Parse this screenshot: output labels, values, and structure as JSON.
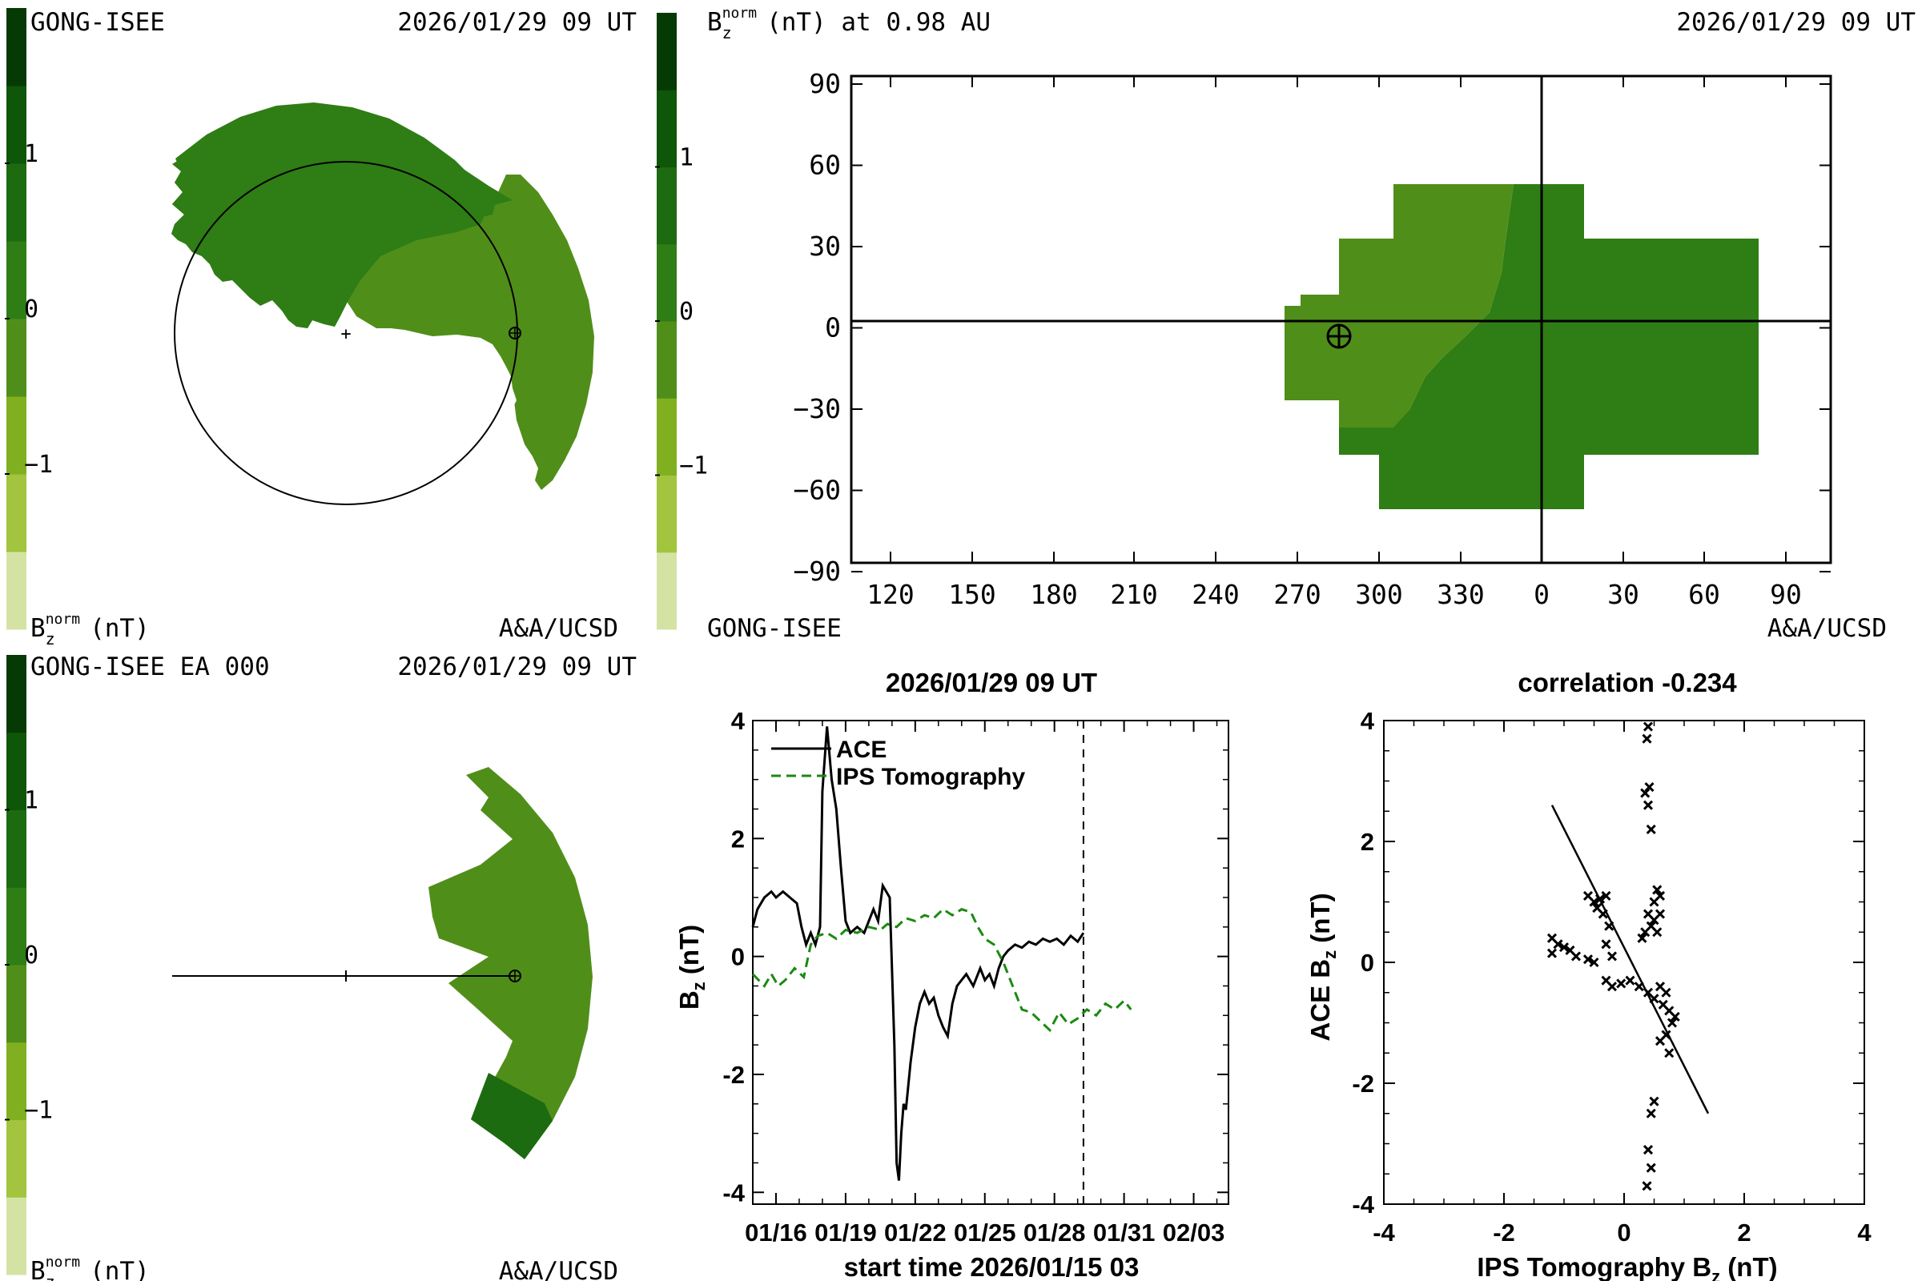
{
  "colorbar": {
    "colors": [
      "#d4e3a4",
      "#a2c43e",
      "#80b020",
      "#508e1a",
      "#2f7d15",
      "#1c6b10",
      "#0e5608",
      "#063a04"
    ],
    "ticks": [
      "1",
      "0",
      "−1"
    ]
  },
  "panel_tl": {
    "source": "GONG-ISEE",
    "time": "2026/01/29 09 UT",
    "unit_base": "B",
    "unit_sub": "z",
    "unit_sup": "norm",
    "unit_tail": "(nT)",
    "credit": "A&A/UCSD"
  },
  "panel_tr": {
    "title_base": "B",
    "title_sub": "z",
    "title_sup": "norm",
    "title_tail": "(nT) at 0.98 AU",
    "time": "2026/01/29 09 UT",
    "source": "GONG-ISEE",
    "credit": "A&A/UCSD",
    "x_ticks": [
      "120",
      "150",
      "180",
      "210",
      "240",
      "270",
      "300",
      "330",
      "0",
      "30",
      "60",
      "90"
    ],
    "y_ticks": [
      "90",
      "60",
      "30",
      "0",
      "−30",
      "−60",
      "−90"
    ]
  },
  "panel_bl": {
    "source": "GONG-ISEE EA 000",
    "time": "2026/01/29 09 UT",
    "unit_base": "B",
    "unit_sub": "z",
    "unit_sup": "norm",
    "unit_tail": "(nT)",
    "credit": "A&A/UCSD"
  },
  "chart_data": [
    {
      "type": "line",
      "title": "2026/01/29 09 UT",
      "xlabel": "start time 2026/01/15 03",
      "ylabel_base": "B",
      "ylabel_sub": "z",
      "ylabel_tail": " (nT)",
      "x_ticks": [
        "01/16",
        "01/19",
        "01/22",
        "01/25",
        "01/28",
        "01/31",
        "02/03"
      ],
      "y_ticks": [
        "4",
        "2",
        "0",
        "-2",
        "-4"
      ],
      "ylim": [
        -4.2,
        4
      ],
      "xlim_days": [
        0,
        20.5
      ],
      "marker_day": 14.25,
      "series": [
        {
          "name": "ACE",
          "color": "#000000",
          "dash": "solid",
          "x": [
            0,
            0.2,
            0.5,
            0.8,
            1.0,
            1.3,
            1.6,
            1.9,
            2.1,
            2.3,
            2.5,
            2.7,
            2.9,
            3.0,
            3.2,
            3.4,
            3.6,
            3.8,
            4.0,
            4.2,
            4.5,
            4.8,
            5.0,
            5.2,
            5.4,
            5.6,
            5.9,
            6.1,
            6.2,
            6.3,
            6.4,
            6.5,
            6.6,
            6.8,
            7.0,
            7.2,
            7.4,
            7.6,
            7.8,
            8.0,
            8.2,
            8.4,
            8.6,
            8.8,
            9.0,
            9.2,
            9.5,
            9.8,
            10.0,
            10.2,
            10.4,
            10.6,
            10.8,
            11.0,
            11.3,
            11.6,
            11.9,
            12.2,
            12.5,
            12.8,
            13.1,
            13.4,
            13.7,
            14.0,
            14.25
          ],
          "y": [
            0.5,
            0.8,
            1.0,
            1.1,
            1.0,
            1.1,
            1.0,
            0.9,
            0.5,
            0.2,
            0.4,
            0.2,
            0.5,
            2.8,
            3.9,
            3.0,
            2.5,
            1.5,
            0.6,
            0.4,
            0.5,
            0.4,
            0.6,
            0.8,
            0.6,
            1.2,
            1.0,
            -1.5,
            -3.5,
            -3.8,
            -3.0,
            -2.5,
            -2.6,
            -1.8,
            -1.2,
            -0.8,
            -0.6,
            -0.8,
            -0.7,
            -1.0,
            -1.2,
            -1.35,
            -0.8,
            -0.5,
            -0.4,
            -0.3,
            -0.5,
            -0.2,
            -0.4,
            -0.3,
            -0.5,
            -0.2,
            0.0,
            0.1,
            0.2,
            0.15,
            0.25,
            0.2,
            0.3,
            0.25,
            0.3,
            0.2,
            0.35,
            0.25,
            0.4
          ]
        },
        {
          "name": "IPS Tomography",
          "color": "#1a8a10",
          "dash": "dashed",
          "x": [
            0,
            0.5,
            0.8,
            1.1,
            1.4,
            1.8,
            2.2,
            2.5,
            2.8,
            3.2,
            3.6,
            4.0,
            4.5,
            5.0,
            5.5,
            5.8,
            6.2,
            6.6,
            7.0,
            7.4,
            7.8,
            8.2,
            8.6,
            9.0,
            9.4,
            9.7,
            10.0,
            10.4,
            10.8,
            11.2,
            11.6,
            12.0,
            12.4,
            12.8,
            13.2,
            13.6,
            14.0,
            14.4,
            14.8,
            15.2,
            15.6,
            16.0,
            16.3
          ],
          "y": [
            -0.3,
            -0.5,
            -0.3,
            -0.5,
            -0.4,
            -0.2,
            -0.35,
            0.2,
            0.35,
            0.4,
            0.3,
            0.45,
            0.4,
            0.5,
            0.45,
            0.55,
            0.5,
            0.65,
            0.6,
            0.7,
            0.65,
            0.8,
            0.7,
            0.8,
            0.75,
            0.5,
            0.3,
            0.2,
            -0.1,
            -0.5,
            -0.9,
            -0.95,
            -1.1,
            -1.25,
            -0.95,
            -1.15,
            -1.05,
            -0.9,
            -1.0,
            -0.8,
            -0.9,
            -0.75,
            -0.9
          ]
        }
      ]
    },
    {
      "type": "scatter",
      "title": "correlation -0.234",
      "xlabel_base": "IPS Tomography B",
      "xlabel_sub": "z",
      "xlabel_tail": " (nT)",
      "ylabel_base": "ACE B",
      "ylabel_sub": "z",
      "ylabel_tail": " (nT)",
      "x_ticks": [
        "-4",
        "-2",
        "0",
        "2",
        "4"
      ],
      "y_ticks": [
        "4",
        "2",
        "0",
        "-2",
        "-4"
      ],
      "xlim": [
        -4,
        4
      ],
      "ylim": [
        -4,
        4
      ],
      "fit_line": {
        "x": [
          -1.2,
          1.4
        ],
        "y": [
          2.6,
          -2.5
        ]
      },
      "points": [
        [
          0.4,
          3.9
        ],
        [
          0.38,
          3.7
        ],
        [
          0.42,
          2.9
        ],
        [
          0.35,
          2.8
        ],
        [
          0.4,
          2.6
        ],
        [
          0.45,
          2.2
        ],
        [
          0.55,
          1.2
        ],
        [
          0.6,
          1.1
        ],
        [
          0.5,
          1.0
        ],
        [
          0.4,
          0.8
        ],
        [
          0.5,
          0.7
        ],
        [
          0.6,
          0.8
        ],
        [
          0.45,
          0.6
        ],
        [
          0.35,
          0.5
        ],
        [
          0.3,
          0.4
        ],
        [
          0.55,
          0.5
        ],
        [
          -0.6,
          1.1
        ],
        [
          -0.5,
          1.0
        ],
        [
          -0.4,
          1.05
        ],
        [
          -0.3,
          1.1
        ],
        [
          -0.45,
          0.9
        ],
        [
          -0.35,
          0.8
        ],
        [
          -0.25,
          0.6
        ],
        [
          -0.3,
          0.3
        ],
        [
          -0.2,
          0.1
        ],
        [
          -1.2,
          0.4
        ],
        [
          -1.1,
          0.3
        ],
        [
          -1.0,
          0.25
        ],
        [
          -0.9,
          0.2
        ],
        [
          -0.8,
          0.1
        ],
        [
          -1.2,
          0.15
        ],
        [
          -0.6,
          0.05
        ],
        [
          -0.5,
          0.0
        ],
        [
          -0.3,
          -0.3
        ],
        [
          -0.2,
          -0.4
        ],
        [
          -0.05,
          -0.35
        ],
        [
          0.1,
          -0.3
        ],
        [
          0.25,
          -0.4
        ],
        [
          0.4,
          -0.5
        ],
        [
          0.5,
          -0.6
        ],
        [
          0.6,
          -0.4
        ],
        [
          0.7,
          -0.5
        ],
        [
          0.65,
          -0.7
        ],
        [
          0.75,
          -0.8
        ],
        [
          0.8,
          -1.0
        ],
        [
          0.7,
          -1.2
        ],
        [
          0.6,
          -1.3
        ],
        [
          0.75,
          -1.5
        ],
        [
          0.85,
          -0.9
        ],
        [
          0.5,
          -2.3
        ],
        [
          0.45,
          -2.5
        ],
        [
          0.4,
          -3.1
        ],
        [
          0.45,
          -3.4
        ],
        [
          0.38,
          -3.7
        ]
      ]
    }
  ]
}
